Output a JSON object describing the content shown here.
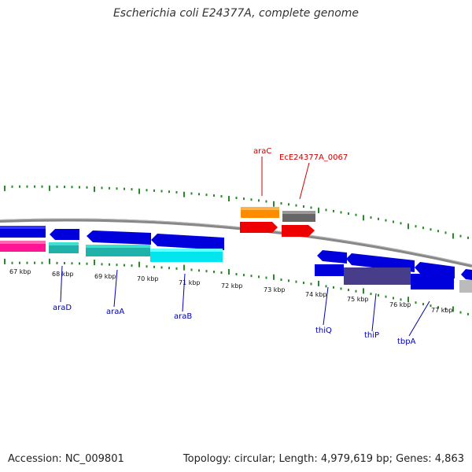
{
  "header": {
    "title": "Escherichia coli E24377A, complete genome"
  },
  "footer": {
    "accession": "Accession: NC_009801",
    "summary": "Topology: circular; Length: 4,979,619 bp; Genes: 4,863"
  },
  "colors": {
    "backbone": "#888888",
    "tick": "#2a8a2a",
    "forward_label": "#cc0000",
    "reverse_label": "#0000aa"
  },
  "ticks": [
    {
      "label": "67 kbp"
    },
    {
      "label": "68 kbp"
    },
    {
      "label": "69 kbp"
    },
    {
      "label": "70 kbp"
    },
    {
      "label": "71 kbp"
    },
    {
      "label": "72 kbp"
    },
    {
      "label": "73 kbp"
    },
    {
      "label": "74 kbp"
    },
    {
      "label": "75 kbp"
    },
    {
      "label": "76 kbp"
    },
    {
      "label": "77 kbp"
    }
  ],
  "gene_labels": [
    {
      "name": "araC",
      "strand": "forward"
    },
    {
      "name": "EcE24377A_0067",
      "strand": "forward"
    },
    {
      "name": "araD",
      "strand": "reverse"
    },
    {
      "name": "araA",
      "strand": "reverse"
    },
    {
      "name": "araB",
      "strand": "reverse"
    },
    {
      "name": "thiQ",
      "strand": "reverse"
    },
    {
      "name": "thiP",
      "strand": "reverse"
    },
    {
      "name": "tbpA",
      "strand": "reverse"
    }
  ]
}
